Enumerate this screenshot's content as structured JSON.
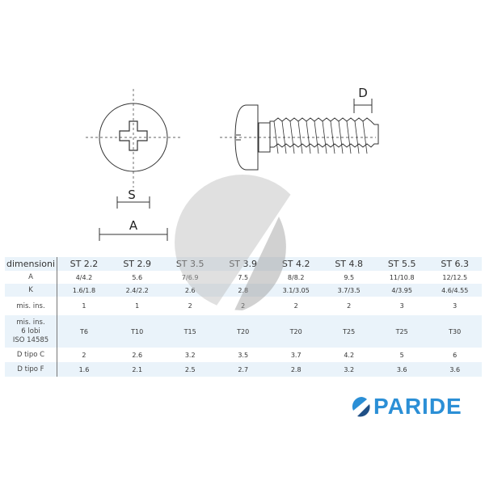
{
  "drawing": {
    "label_s": "S",
    "label_a": "A",
    "label_d": "D"
  },
  "table": {
    "header": [
      "dimensioni",
      "ST 2.2",
      "ST 2.9",
      "ST 3.5",
      "ST 3.9",
      "ST 4.2",
      "ST 4.8",
      "ST 5.5",
      "ST 6.3"
    ],
    "rows": [
      {
        "label": "A",
        "values": [
          "4/4.2",
          "5.6",
          "7/6.9",
          "7.5",
          "8/8.2",
          "9.5",
          "11/10.8",
          "12/12.5"
        ]
      },
      {
        "label": "K",
        "values": [
          "1.6/1.8",
          "2.4/2.2",
          "2.6",
          "2.8",
          "3.1/3.05",
          "3.7/3.5",
          "4/3.95",
          "4.6/4.55"
        ]
      },
      {
        "label": "mis. ins.",
        "values": [
          "1",
          "1",
          "2",
          "2",
          "2",
          "2",
          "3",
          "3"
        ]
      },
      {
        "label_lines": [
          "mis. ins.",
          "6 lobi",
          "ISO 14585"
        ],
        "values": [
          "T6",
          "T10",
          "T15",
          "T20",
          "T20",
          "T25",
          "T25",
          "T30"
        ]
      },
      {
        "label": "D tipo C",
        "values": [
          "2",
          "2.6",
          "3.2",
          "3.5",
          "3.7",
          "4.2",
          "5",
          "6"
        ]
      },
      {
        "label": "D tipo F",
        "values": [
          "1.6",
          "2.1",
          "2.5",
          "2.7",
          "2.8",
          "3.2",
          "3.6",
          "3.6"
        ]
      }
    ]
  },
  "logo": {
    "text": "PARIDE",
    "color": "#2b8fd6",
    "dark": "#1f4f86"
  },
  "colors": {
    "row_band": "#eaf3fa",
    "line": "#333333"
  }
}
